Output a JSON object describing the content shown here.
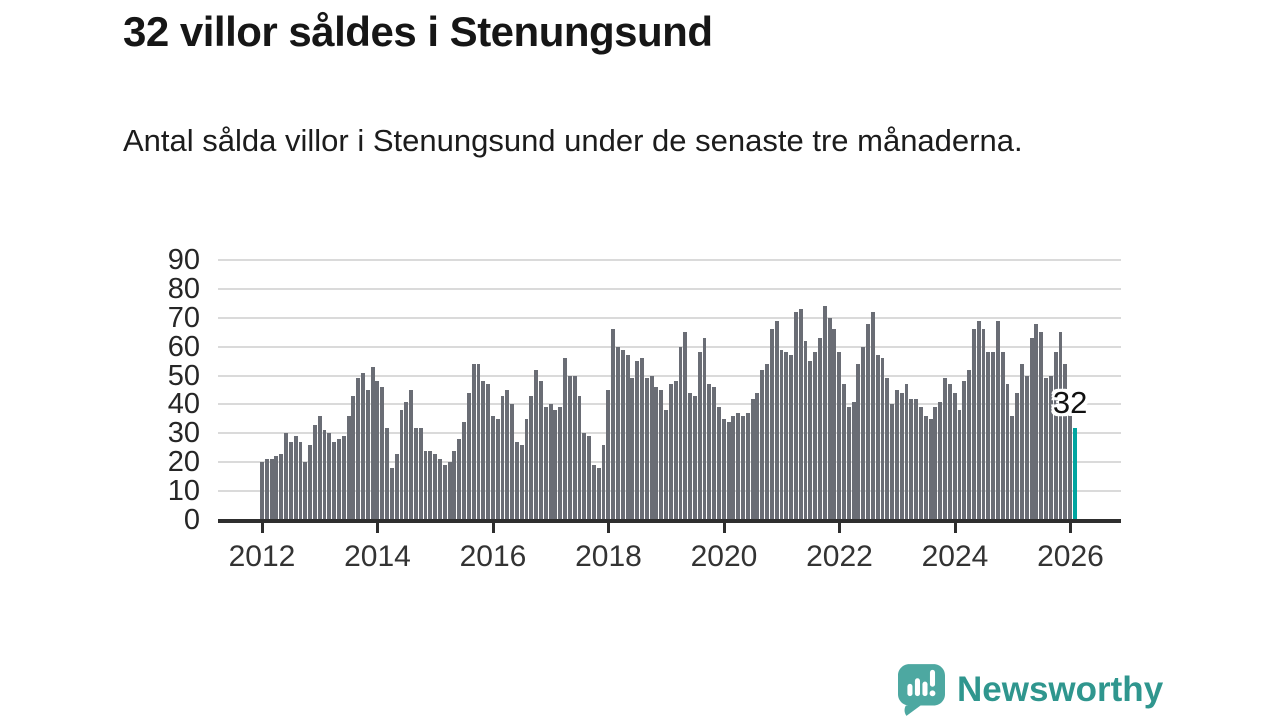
{
  "header": {
    "title": "32 villor såldes i Stenungsund",
    "subtitle": "Antal sålda villor i Stenungsund under de senaste tre månaderna."
  },
  "chart_data": {
    "type": "bar",
    "title": "32 villor såldes i Stenungsund",
    "subtitle": "Antal sålda villor i Stenungsund under de senaste tre månaderna.",
    "x_start": "2012-01",
    "frequency": "monthly",
    "x_tick_labels": [
      "2012",
      "2014",
      "2016",
      "2018",
      "2020",
      "2022",
      "2024",
      "2026"
    ],
    "y_ticks": [
      0,
      10,
      20,
      30,
      40,
      50,
      60,
      70,
      80,
      90
    ],
    "ylim": [
      0,
      90
    ],
    "grid": true,
    "bar_color": "#6a6d75",
    "gridline_color": "#dadada",
    "axis_color": "#2e2e2e",
    "values": [
      20,
      21,
      21,
      22,
      23,
      30,
      27,
      29,
      27,
      20,
      26,
      33,
      36,
      31,
      30,
      27,
      28,
      29,
      36,
      43,
      49,
      51,
      45,
      53,
      48,
      46,
      32,
      18,
      23,
      38,
      41,
      45,
      32,
      32,
      24,
      24,
      23,
      21,
      19,
      20,
      24,
      28,
      34,
      44,
      54,
      54,
      48,
      47,
      36,
      35,
      43,
      45,
      40,
      27,
      26,
      35,
      43,
      52,
      48,
      39,
      40,
      38,
      39,
      56,
      50,
      50,
      43,
      30,
      29,
      19,
      18,
      26,
      45,
      66,
      60,
      59,
      57,
      49,
      55,
      56,
      49,
      50,
      46,
      45,
      38,
      47,
      48,
      60,
      65,
      44,
      43,
      58,
      63,
      47,
      46,
      39,
      35,
      34,
      36,
      37,
      36,
      37,
      42,
      44,
      52,
      54,
      66,
      69,
      59,
      58,
      57,
      72,
      73,
      62,
      55,
      58,
      63,
      74,
      70,
      66,
      58,
      47,
      39,
      41,
      54,
      60,
      68,
      72,
      57,
      56,
      49,
      40,
      45,
      44,
      47,
      42,
      42,
      39,
      36,
      35,
      39,
      41,
      49,
      47,
      44,
      38,
      48,
      52,
      66,
      69,
      66,
      58,
      58,
      69,
      58,
      47,
      36,
      44,
      54,
      50,
      63,
      68,
      65,
      49,
      50,
      58,
      65,
      54,
      38,
      32
    ],
    "highlight": {
      "index_from_end": 1,
      "value": 32,
      "label": "32",
      "color": "#00a5a0"
    }
  },
  "footer": {
    "brand": "Newsworthy",
    "logo_icon": "bar-chart-speech-bubble-icon",
    "brand_color": "#2f968e",
    "icon_color": "#4da8a1"
  }
}
